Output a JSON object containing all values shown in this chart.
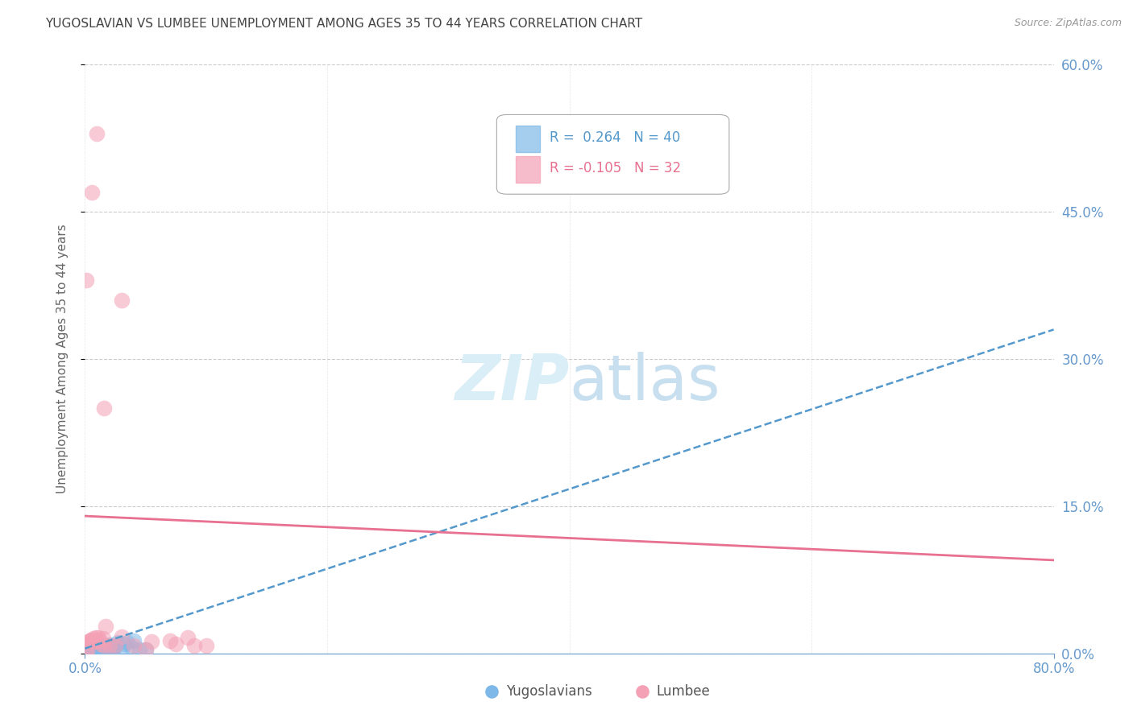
{
  "title": "YUGOSLAVIAN VS LUMBEE UNEMPLOYMENT AMONG AGES 35 TO 44 YEARS CORRELATION CHART",
  "source": "Source: ZipAtlas.com",
  "ylabel_label": "Unemployment Among Ages 35 to 44 years",
  "yug_color": "#7eb8e8",
  "lum_color": "#f4a0b5",
  "yug_line_color": "#5599cc",
  "lum_line_color": "#e87090",
  "background_color": "#ffffff",
  "grid_color": "#cccccc",
  "axis_color": "#6699cc",
  "title_color": "#444444",
  "source_color": "#999999",
  "watermark_color": "#daeef8",
  "yugoslav_scatter": [
    [
      0.001,
      0.001
    ],
    [
      0.002,
      0.001
    ],
    [
      0.003,
      0.002
    ],
    [
      0.004,
      0.001
    ],
    [
      0.005,
      0.003
    ],
    [
      0.006,
      0.002
    ],
    [
      0.007,
      0.001
    ],
    [
      0.008,
      0.004
    ],
    [
      0.009,
      0.002
    ],
    [
      0.01,
      0.001
    ],
    [
      0.011,
      0.005
    ],
    [
      0.012,
      0.004
    ],
    [
      0.013,
      0.001
    ],
    [
      0.014,
      0.001
    ],
    [
      0.015,
      0.003
    ],
    [
      0.016,
      0.002
    ],
    [
      0.017,
      0.007
    ],
    [
      0.018,
      0.008
    ],
    [
      0.019,
      0.006
    ],
    [
      0.02,
      0.009
    ],
    [
      0.021,
      0.007
    ],
    [
      0.022,
      0.005
    ],
    [
      0.023,
      0.003
    ],
    [
      0.025,
      0.008
    ],
    [
      0.027,
      0.011
    ],
    [
      0.03,
      0.004
    ],
    [
      0.032,
      0.01
    ],
    [
      0.035,
      0.011
    ],
    [
      0.038,
      0.006
    ],
    [
      0.04,
      0.013
    ],
    [
      0.045,
      0.004
    ],
    [
      0.05,
      0.004
    ],
    [
      0.002,
      0.0
    ],
    [
      0.003,
      0.001
    ],
    [
      0.004,
      0.0
    ],
    [
      0.005,
      0.001
    ],
    [
      0.006,
      0.003
    ],
    [
      0.008,
      0.001
    ],
    [
      0.01,
      0.003
    ],
    [
      0.015,
      0.002
    ]
  ],
  "lumbee_scatter": [
    [
      0.003,
      0.012
    ],
    [
      0.004,
      0.013
    ],
    [
      0.005,
      0.014
    ],
    [
      0.006,
      0.013
    ],
    [
      0.007,
      0.015
    ],
    [
      0.008,
      0.012
    ],
    [
      0.009,
      0.016
    ],
    [
      0.01,
      0.013
    ],
    [
      0.011,
      0.016
    ],
    [
      0.012,
      0.014
    ],
    [
      0.013,
      0.01
    ],
    [
      0.015,
      0.015
    ],
    [
      0.016,
      0.008
    ],
    [
      0.017,
      0.028
    ],
    [
      0.02,
      0.008
    ],
    [
      0.025,
      0.008
    ],
    [
      0.03,
      0.017
    ],
    [
      0.04,
      0.008
    ],
    [
      0.05,
      0.004
    ],
    [
      0.055,
      0.012
    ],
    [
      0.07,
      0.013
    ],
    [
      0.075,
      0.01
    ],
    [
      0.085,
      0.016
    ],
    [
      0.09,
      0.008
    ],
    [
      0.1,
      0.008
    ],
    [
      0.001,
      0.001
    ],
    [
      0.002,
      0.003
    ],
    [
      0.006,
      0.47
    ],
    [
      0.01,
      0.53
    ],
    [
      0.03,
      0.36
    ],
    [
      0.016,
      0.25
    ],
    [
      0.001,
      0.38
    ]
  ],
  "yugoslav_line_x": [
    0.0,
    0.8
  ],
  "yugoslav_line_y": [
    0.005,
    0.33
  ],
  "lumbee_line_x": [
    0.0,
    0.8
  ],
  "lumbee_line_y": [
    0.14,
    0.095
  ],
  "xmin": 0.0,
  "xmax": 0.8,
  "ymin": 0.0,
  "ymax": 0.6,
  "ytick_vals": [
    0.0,
    0.15,
    0.3,
    0.45,
    0.6
  ],
  "ytick_labels": [
    "0.0%",
    "15.0%",
    "30.0%",
    "45.0%",
    "60.0%"
  ],
  "xtick_vals": [
    0.0,
    0.8
  ],
  "xtick_labels": [
    "0.0%",
    "80.0%"
  ]
}
